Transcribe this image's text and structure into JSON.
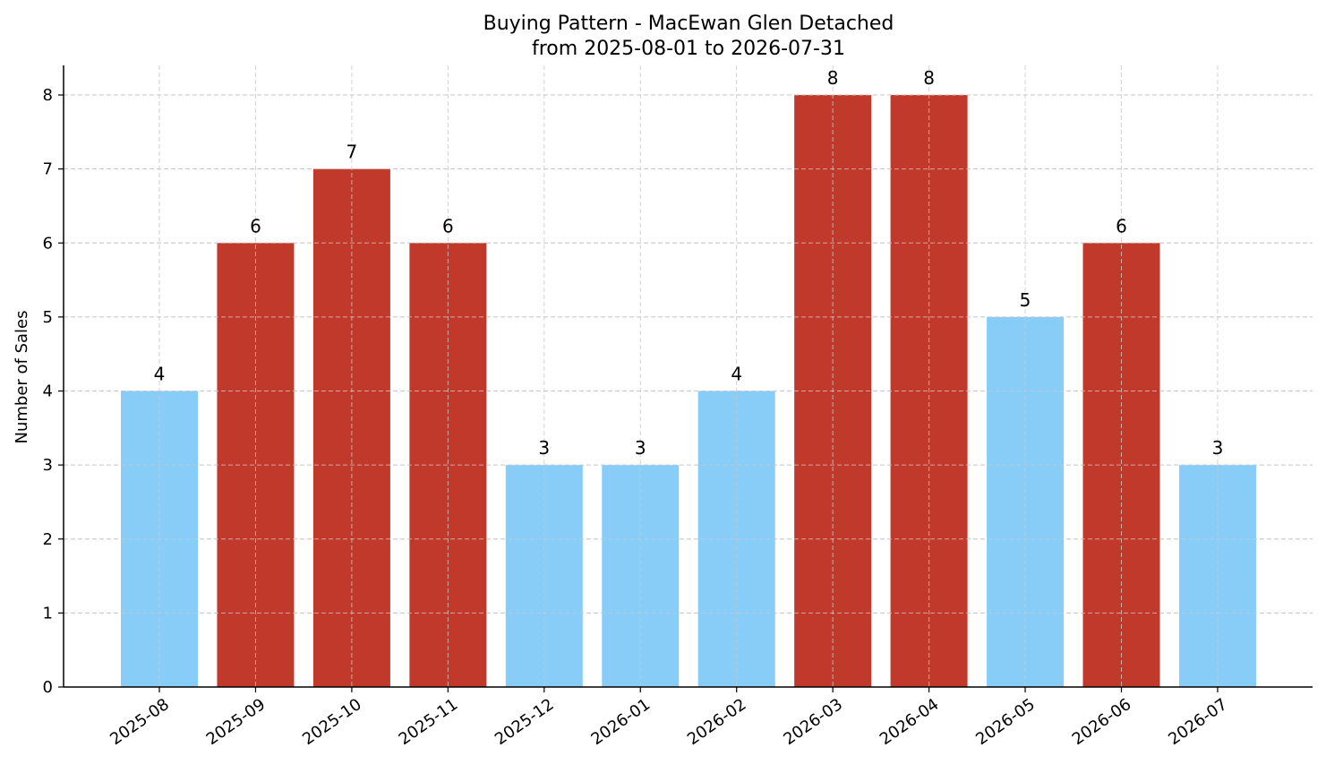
{
  "chart_data": {
    "type": "bar",
    "title": "Buying Pattern - MacEwan Glen Detached",
    "subtitle": "from 2025-08-01 to 2026-07-31",
    "xlabel": "",
    "ylabel": "Number of Sales",
    "ylim": [
      0,
      8.4
    ],
    "yticks": [
      0,
      1,
      2,
      3,
      4,
      5,
      6,
      7,
      8
    ],
    "grid": true,
    "categories": [
      "2025-08",
      "2025-09",
      "2025-10",
      "2025-11",
      "2025-12",
      "2026-01",
      "2026-02",
      "2026-03",
      "2026-04",
      "2026-05",
      "2026-06",
      "2026-07"
    ],
    "values": [
      4,
      6,
      7,
      6,
      3,
      3,
      4,
      8,
      8,
      5,
      6,
      3
    ],
    "value_labels": [
      "4",
      "6",
      "7",
      "6",
      "3",
      "3",
      "4",
      "8",
      "8",
      "5",
      "6",
      "3"
    ],
    "bar_colors": [
      "#87cdf7",
      "#c0392b",
      "#c0392b",
      "#c0392b",
      "#87cdf7",
      "#87cdf7",
      "#87cdf7",
      "#c0392b",
      "#c0392b",
      "#87cdf7",
      "#c0392b",
      "#87cdf7"
    ]
  }
}
